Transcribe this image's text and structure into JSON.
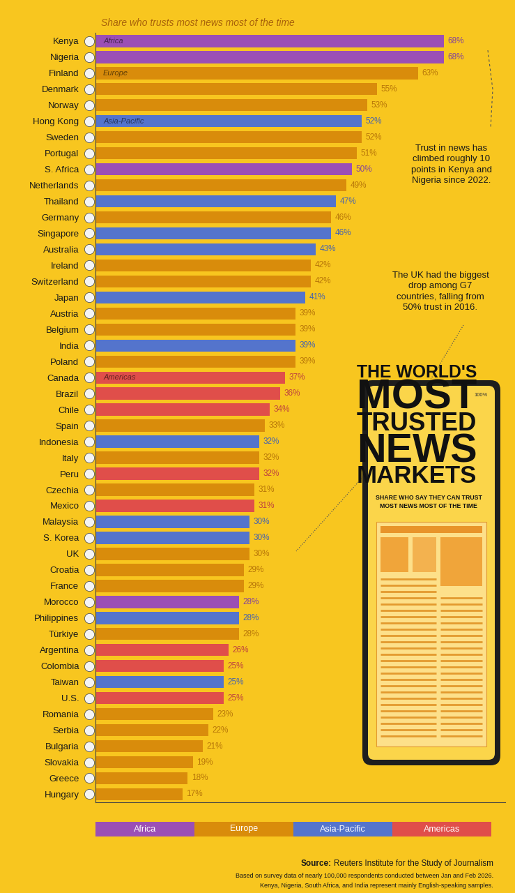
{
  "chart_data": {
    "type": "bar",
    "orientation": "horizontal",
    "title": "THE WORLD'S\nMOST\nTRUSTED\nNEWS\nMARKETS",
    "caption": "SHARE WHO SAY THEY CAN TRUST MOST NEWS MOST OF THE TIME",
    "subtitle": "Share who trusts most news most of the time",
    "phone_label": "100%",
    "categories": [
      "Kenya",
      "Nigeria",
      "Finland",
      "Denmark",
      "Norway",
      "Hong Kong",
      "Sweden",
      "Portugal",
      "S. Africa",
      "Netherlands",
      "Thailand",
      "Germany",
      "Singapore",
      "Australia",
      "Ireland",
      "Switzerland",
      "Japan",
      "Austria",
      "Belgium",
      "India",
      "Poland",
      "Canada",
      "Brazil",
      "Chile",
      "Spain",
      "Indonesia",
      "Italy",
      "Peru",
      "Czechia",
      "Mexico",
      "Malaysia",
      "S. Korea",
      "UK",
      "Croatia",
      "France",
      "Morocco",
      "Philippines",
      "Türkiye",
      "Argentina",
      "Colombia",
      "Taiwan",
      "U.S.",
      "Romania",
      "Serbia",
      "Bulgaria",
      "Slovakia",
      "Greece",
      "Hungary"
    ],
    "values": [
      68,
      68,
      63,
      55,
      53,
      52,
      52,
      51,
      50,
      49,
      47,
      46,
      46,
      43,
      42,
      42,
      41,
      39,
      39,
      39,
      39,
      37,
      36,
      34,
      33,
      32,
      32,
      32,
      31,
      31,
      30,
      30,
      30,
      29,
      29,
      28,
      28,
      28,
      26,
      25,
      25,
      25,
      23,
      22,
      21,
      19,
      18,
      17
    ],
    "value_labels": [
      "68%",
      "68%",
      "63%",
      "55%",
      "53%",
      "52%",
      "52%",
      "51%",
      "50%",
      "49%",
      "47%",
      "46%",
      "46%",
      "43%",
      "42%",
      "42%",
      "41%",
      "39%",
      "39%",
      "39%",
      "39%",
      "37%",
      "36%",
      "34%",
      "33%",
      "32%",
      "32%",
      "32%",
      "31%",
      "31%",
      "30%",
      "30%",
      "30%",
      "29%",
      "29%",
      "28%",
      "28%",
      "28%",
      "26%",
      "25%",
      "25%",
      "25%",
      "23%",
      "22%",
      "21%",
      "19%",
      "18%",
      "17%"
    ],
    "colors": [
      "#9b4fb5",
      "#9b4fb5",
      "#d98c0b",
      "#d98c0b",
      "#d98c0b",
      "#5474cc",
      "#d98c0b",
      "#d98c0b",
      "#9b4fb5",
      "#d98c0b",
      "#5474cc",
      "#d98c0b",
      "#5474cc",
      "#5474cc",
      "#d98c0b",
      "#d98c0b",
      "#5474cc",
      "#d98c0b",
      "#d98c0b",
      "#5474cc",
      "#d98c0b",
      "#e04e4a",
      "#e04e4a",
      "#e04e4a",
      "#d98c0b",
      "#5474cc",
      "#d98c0b",
      "#e04e4a",
      "#d98c0b",
      "#e04e4a",
      "#5474cc",
      "#5474cc",
      "#d98c0b",
      "#d98c0b",
      "#d98c0b",
      "#9b4fb5",
      "#5474cc",
      "#d98c0b",
      "#e04e4a",
      "#e04e4a",
      "#5474cc",
      "#e04e4a",
      "#d98c0b",
      "#d98c0b",
      "#d98c0b",
      "#d98c0b",
      "#d98c0b",
      "#d98c0b"
    ],
    "bar_annotations": [
      {
        "category": "Kenya",
        "text": "Africa"
      },
      {
        "category": "Finland",
        "text": "Europe"
      },
      {
        "category": "Hong Kong",
        "text": "Asia-Pacific"
      },
      {
        "category": "Canada",
        "text": "Americas"
      }
    ],
    "annotations": [
      "Trust in news has climbed roughly 10 points in Kenya and Nigeria since 2022.",
      "The UK had the biggest drop among G7 countries, falling from 50% trust in 2016."
    ],
    "region_key": [
      {
        "name": "Africa",
        "color": "#9b4fb5"
      },
      {
        "name": "Europe",
        "color": "#d98c0b"
      },
      {
        "name": "Asia-Pacific",
        "color": "#5474cc"
      },
      {
        "name": "Americas",
        "color": "#e04e4a"
      }
    ],
    "xlim": [
      0,
      80
    ],
    "xticks": [],
    "grid": false,
    "data_labels": true,
    "tick_labels": "y",
    "source_label": "Source:",
    "source": "Reuters Institute for the Study of Journalism",
    "notes": [
      "Based on survey data of nearly 100,000 respondents conducted between Jan and Feb 2026.",
      "Kenya, Nigeria, South Africa, and India represent mainly English-speaking samples."
    ]
  }
}
